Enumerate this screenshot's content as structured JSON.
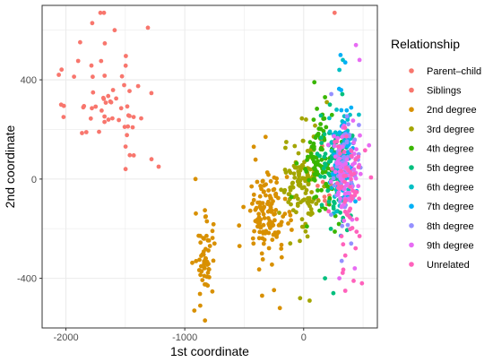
{
  "chart_data": {
    "type": "scatter",
    "title": "",
    "xlabel": "1st coordinate",
    "ylabel": "2nd coordinate",
    "xlim": [
      -2200,
      620
    ],
    "ylim": [
      -600,
      700
    ],
    "xticks": [
      -2000,
      -1000,
      0
    ],
    "xtick_labels": [
      "-2000",
      "-1000",
      "0"
    ],
    "yticks": [
      -400,
      0,
      400
    ],
    "ytick_labels": [
      "-400",
      "0",
      "400"
    ],
    "grid": true,
    "legend": {
      "title": "Relationship",
      "position": "right"
    },
    "series": [
      {
        "name": "Parent–child",
        "color": "#F8766D",
        "clusters": [
          {
            "cx": 200,
            "cy": 0,
            "sx": 120,
            "sy": 140,
            "n": 14
          }
        ],
        "points": [
          [
            260,
            670
          ]
        ]
      },
      {
        "name": "Siblings",
        "color": "#F8766D",
        "clusters": [
          {
            "cx": -1650,
            "cy": 320,
            "sx": 230,
            "sy": 150,
            "n": 55
          }
        ],
        "points": [
          [
            -1710,
            720
          ],
          [
            -1680,
            710
          ],
          [
            -1310,
            610
          ],
          [
            -1590,
            600
          ],
          [
            -2060,
            420
          ],
          [
            -2040,
            300
          ],
          [
            -2020,
            250
          ],
          [
            -1220,
            50
          ],
          [
            -1280,
            80
          ]
        ]
      },
      {
        "name": "2nd degree",
        "color": "#D89000",
        "clusters": [
          {
            "cx": -820,
            "cy": -330,
            "sx": 45,
            "sy": 110,
            "n": 55
          },
          {
            "cx": -300,
            "cy": -150,
            "sx": 110,
            "sy": 110,
            "n": 130
          }
        ],
        "points": [
          [
            -910,
            0
          ],
          [
            -830,
            -580
          ],
          [
            -920,
            -530
          ],
          [
            -870,
            -510
          ],
          [
            -750,
            -260
          ],
          [
            -350,
            -470
          ],
          [
            -200,
            -520
          ],
          [
            -540,
            -270
          ],
          [
            -420,
            130
          ],
          [
            -320,
            170
          ]
        ]
      },
      {
        "name": "3rd degree",
        "color": "#A3A500",
        "clusters": [
          {
            "cx": 0,
            "cy": -20,
            "sx": 110,
            "sy": 130,
            "n": 120
          }
        ],
        "points": [
          [
            20,
            240
          ],
          [
            -30,
            -480
          ],
          [
            50,
            -490
          ]
        ]
      },
      {
        "name": "4th degree",
        "color": "#39B600",
        "clusters": [
          {
            "cx": 150,
            "cy": 60,
            "sx": 100,
            "sy": 140,
            "n": 100
          }
        ],
        "points": [
          [
            90,
            390
          ],
          [
            180,
            330
          ]
        ]
      },
      {
        "name": "5th degree",
        "color": "#00BF7D",
        "clusters": [
          {
            "cx": 260,
            "cy": 40,
            "sx": 90,
            "sy": 140,
            "n": 80
          }
        ],
        "points": [
          [
            220,
            300
          ],
          [
            250,
            -460
          ],
          [
            180,
            -400
          ]
        ]
      },
      {
        "name": "6th degree",
        "color": "#00BFC4",
        "clusters": [
          {
            "cx": 300,
            "cy": 60,
            "sx": 70,
            "sy": 140,
            "n": 70
          }
        ],
        "points": [
          [
            330,
            480
          ],
          [
            300,
            440
          ]
        ]
      },
      {
        "name": "7th degree",
        "color": "#00B0F6",
        "clusters": [
          {
            "cx": 330,
            "cy": 70,
            "sx": 70,
            "sy": 150,
            "n": 70
          }
        ],
        "points": [
          [
            310,
            500
          ],
          [
            350,
            470
          ]
        ]
      },
      {
        "name": "8th degree",
        "color": "#9590FF",
        "clusters": [
          {
            "cx": 350,
            "cy": 60,
            "sx": 80,
            "sy": 140,
            "n": 60
          }
        ],
        "points": [
          [
            400,
            -260
          ],
          [
            320,
            -330
          ]
        ]
      },
      {
        "name": "9th degree",
        "color": "#E76BF3",
        "clusters": [
          {
            "cx": 350,
            "cy": 50,
            "sx": 90,
            "sy": 140,
            "n": 70
          }
        ],
        "points": [
          [
            440,
            540
          ],
          [
            470,
            480
          ],
          [
            430,
            -360
          ],
          [
            300,
            -400
          ]
        ]
      },
      {
        "name": "Unrelated",
        "color": "#FF62BC",
        "clusters": [
          {
            "cx": 380,
            "cy": -30,
            "sx": 90,
            "sy": 170,
            "n": 55
          }
        ],
        "points": [
          [
            470,
            -230
          ],
          [
            490,
            -420
          ],
          [
            420,
            -410
          ],
          [
            350,
            -450
          ],
          [
            460,
            90
          ],
          [
            210,
            -130
          ]
        ]
      }
    ]
  }
}
